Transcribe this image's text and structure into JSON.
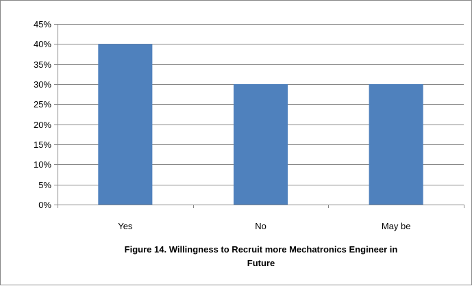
{
  "caption": {
    "line1": "Figure 14. Willingness to Recruit more Mechatronics Engineer in",
    "line2": "Future"
  },
  "colors": {
    "bar": "#4f81bd",
    "gridline": "#868686",
    "axis": "#868686",
    "border": "#868686"
  },
  "chart_data": {
    "type": "bar",
    "categories": [
      "Yes",
      "No",
      "May be"
    ],
    "values": [
      40,
      30,
      30
    ],
    "value_unit": "%",
    "title": "",
    "xlabel": "",
    "ylabel": "",
    "ylim": [
      0,
      45
    ],
    "ytick_step": 5,
    "yticks": [
      "0%",
      "5%",
      "10%",
      "15%",
      "20%",
      "25%",
      "30%",
      "35%",
      "40%",
      "45%"
    ],
    "grid": true,
    "legend": "none"
  }
}
